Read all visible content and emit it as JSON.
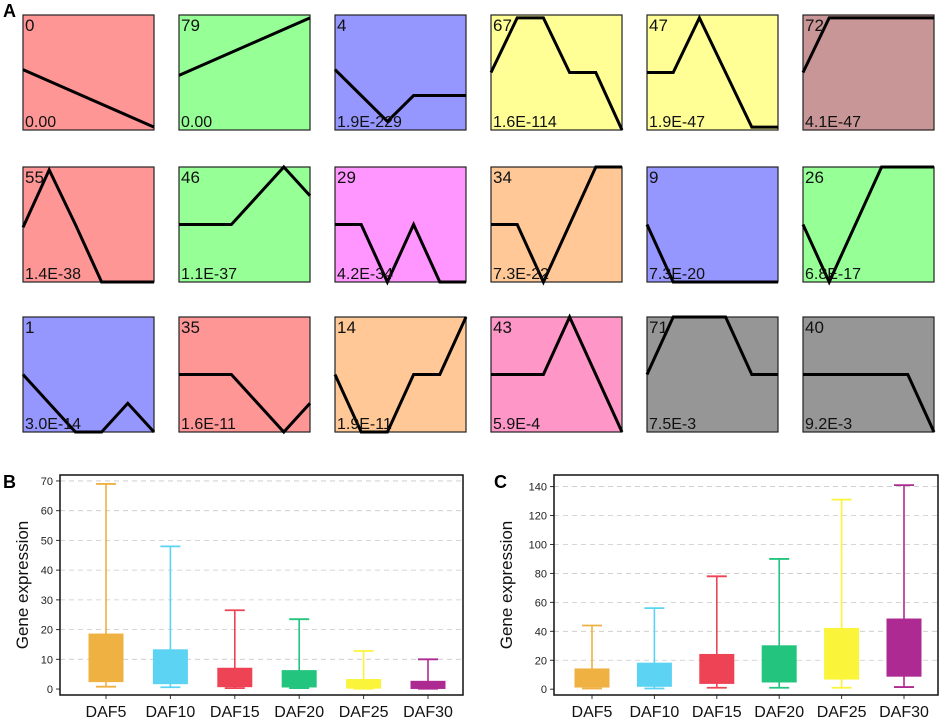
{
  "panel_labels": {
    "a": "A",
    "b": "B",
    "c": "C"
  },
  "chart_data": [
    {
      "type": "line",
      "panel": "A",
      "description_of_series": "STEM expression profile clusters; each tile = one profile, values are normalized expression levels (0 = low, 4 = high) across 6 time points",
      "profiles": [
        {
          "id": "0",
          "pvalue": "0.00",
          "color": "#FF9696",
          "values": [
            2.1,
            1.7,
            1.3,
            0.9,
            0.5,
            0.1
          ]
        },
        {
          "id": "79",
          "pvalue": "0.00",
          "color": "#96FF96",
          "values": [
            1.9,
            2.3,
            2.7,
            3.1,
            3.5,
            3.9
          ]
        },
        {
          "id": "4",
          "pvalue": "1.9E-229",
          "color": "#9696FF",
          "values": [
            2.1,
            1.2,
            0.3,
            1.2,
            1.2,
            1.2
          ]
        },
        {
          "id": "67",
          "pvalue": "1.6E-114",
          "color": "#FFFF96",
          "values": [
            2.0,
            3.9,
            3.9,
            2.0,
            2.0,
            0.0
          ]
        },
        {
          "id": "47",
          "pvalue": "1.9E-47",
          "color": "#FFFF96",
          "values": [
            2.0,
            2.0,
            3.9,
            2.0,
            0.1,
            0.1
          ]
        },
        {
          "id": "72",
          "pvalue": "4.1E-47",
          "color": "#C89696",
          "values": [
            2.0,
            3.9,
            3.9,
            3.9,
            3.9,
            3.9
          ]
        },
        {
          "id": "55",
          "pvalue": "1.4E-38",
          "color": "#FF9696",
          "values": [
            1.9,
            3.9,
            2.0,
            0.0,
            0.0,
            0.0
          ]
        },
        {
          "id": "46",
          "pvalue": "1.1E-37",
          "color": "#96FF96",
          "values": [
            2.0,
            2.0,
            2.0,
            3.0,
            4.0,
            3.0
          ]
        },
        {
          "id": "29",
          "pvalue": "4.2E-34",
          "color": "#FF96FF",
          "values": [
            2.0,
            2.0,
            0.0,
            2.0,
            0.0,
            0.0
          ]
        },
        {
          "id": "34",
          "pvalue": "7.3E-22",
          "color": "#FFC896",
          "values": [
            2.0,
            2.0,
            0.0,
            2.0,
            4.0,
            4.0
          ]
        },
        {
          "id": "9",
          "pvalue": "7.3E-20",
          "color": "#9696FF",
          "values": [
            2.0,
            0.0,
            0.0,
            0.0,
            0.0,
            0.0
          ]
        },
        {
          "id": "26",
          "pvalue": "6.8E-17",
          "color": "#96FF96",
          "values": [
            2.0,
            0.0,
            2.0,
            4.0,
            4.0,
            4.0
          ]
        },
        {
          "id": "1",
          "pvalue": "3.0E-14",
          "color": "#9696FF",
          "values": [
            2.0,
            1.0,
            0.0,
            0.0,
            1.0,
            0.0
          ]
        },
        {
          "id": "35",
          "pvalue": "1.6E-11",
          "color": "#FF9696",
          "values": [
            2.0,
            2.0,
            2.0,
            1.0,
            0.0,
            1.0
          ]
        },
        {
          "id": "14",
          "pvalue": "1.9E-11",
          "color": "#FFC896",
          "values": [
            2.0,
            0.0,
            0.0,
            2.0,
            2.0,
            4.0
          ]
        },
        {
          "id": "43",
          "pvalue": "5.9E-4",
          "color": "#FF96C8",
          "values": [
            2.0,
            2.0,
            2.0,
            4.0,
            2.0,
            0.0
          ]
        },
        {
          "id": "71",
          "pvalue": "7.5E-3",
          "color": "#969696",
          "values": [
            2.0,
            4.0,
            4.0,
            4.0,
            2.0,
            2.0
          ]
        },
        {
          "id": "40",
          "pvalue": "9.2E-3",
          "color": "#969696",
          "values": [
            2.0,
            2.0,
            2.0,
            2.0,
            2.0,
            0.0
          ]
        }
      ]
    },
    {
      "type": "box",
      "panel": "B",
      "xlabel": "",
      "ylabel": "Gene expression",
      "ylim": [
        -2,
        72
      ],
      "yticks": [
        0,
        10,
        20,
        30,
        40,
        50,
        60,
        70
      ],
      "categories": [
        "DAF5",
        "DAF10",
        "DAF15",
        "DAF20",
        "DAF25",
        "DAF30"
      ],
      "colors": [
        "#EFB142",
        "#5CD3F3",
        "#EE4355",
        "#22C47E",
        "#FAF43A",
        "#AD2A92"
      ],
      "boxes": [
        {
          "min": 0.8,
          "q1": 2.5,
          "q3": 18.5,
          "max": 69
        },
        {
          "min": 0.6,
          "q1": 1.8,
          "q3": 13.2,
          "max": 48
        },
        {
          "min": 0.3,
          "q1": 0.8,
          "q3": 7.0,
          "max": 26.5
        },
        {
          "min": 0.3,
          "q1": 0.7,
          "q3": 6.2,
          "max": 23.5
        },
        {
          "min": 0.1,
          "q1": 0.3,
          "q3": 3.2,
          "max": 12.8
        },
        {
          "min": 0.1,
          "q1": 0.2,
          "q3": 2.6,
          "max": 10
        }
      ]
    },
    {
      "type": "box",
      "panel": "C",
      "xlabel": "",
      "ylabel": "Gene expression",
      "ylim": [
        -4,
        148
      ],
      "yticks": [
        0,
        20,
        40,
        60,
        80,
        100,
        120,
        140
      ],
      "categories": [
        "DAF5",
        "DAF10",
        "DAF15",
        "DAF20",
        "DAF25",
        "DAF30"
      ],
      "colors": [
        "#EFB142",
        "#5CD3F3",
        "#EE4355",
        "#22C47E",
        "#FAF43A",
        "#AD2A92"
      ],
      "boxes": [
        {
          "min": 0.5,
          "q1": 1.5,
          "q3": 14,
          "max": 44
        },
        {
          "min": 0.5,
          "q1": 2,
          "q3": 18,
          "max": 56
        },
        {
          "min": 1,
          "q1": 4,
          "q3": 24,
          "max": 78
        },
        {
          "min": 1,
          "q1": 5,
          "q3": 30,
          "max": 90
        },
        {
          "min": 1,
          "q1": 7,
          "q3": 42,
          "max": 131
        },
        {
          "min": 1.5,
          "q1": 9,
          "q3": 48.5,
          "max": 141
        }
      ]
    }
  ]
}
